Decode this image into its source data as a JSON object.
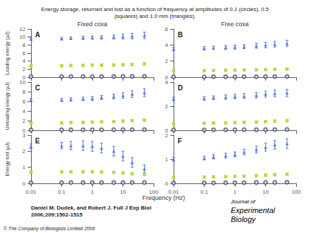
{
  "title": "Energy storage, returned and lost as a function of frequency at amplitudes of 0.1 (circles), 0.5\n(squares) and 1.0 mm (triangles).",
  "xlabel": "Frequency (Hz)",
  "annotations": [
    "Daniel M. Dudek, and Robert J. Full J Exp Biol\n2006;209:1502-1515",
    "© The Company of Biologists Limited 2006",
    "Journal of",
    "Experimental",
    "Biology"
  ],
  "chart_data": [
    {
      "type": "scatter",
      "title": "Fixed coxa",
      "ylabel": "Loading energy (µJ)",
      "annotations": [
        "A"
      ],
      "x": [
        0.01,
        0.1,
        0.2,
        0.5,
        1.0,
        2.0,
        5.0,
        10.0,
        20.0,
        50.0
      ],
      "log": "x",
      "xlim": [
        0.01,
        100
      ],
      "xticks": [
        0.01,
        0.1,
        1,
        10,
        100
      ],
      "ylim": [
        0,
        12
      ],
      "yticks": [
        0,
        2,
        4,
        6,
        8,
        10,
        12
      ],
      "grid": false,
      "tick_labels": "y",
      "series": [
        {
          "marker": "triangle",
          "values": [
            9.5,
            9.6,
            9.7,
            9.8,
            9.85,
            9.9,
            10.0,
            10.1,
            10.2,
            10.4
          ],
          "yerr": [
            0.3,
            0.3,
            0.3,
            0.4,
            0.4,
            0.4,
            0.5,
            0.6,
            0.7,
            0.8
          ]
        },
        {
          "marker": "square",
          "values": [
            2.8,
            2.85,
            2.9,
            2.95,
            3.0,
            3.0,
            3.05,
            3.1,
            3.15,
            3.3
          ],
          "yerr": [
            0.15,
            0.15,
            0.15,
            0.15,
            0.15,
            0.15,
            0.2,
            0.2,
            0.25,
            0.3
          ]
        },
        {
          "marker": "circle",
          "values": [
            0.15,
            0.16,
            0.17,
            0.17,
            0.18,
            0.18,
            0.19,
            0.2,
            0.21,
            0.22
          ],
          "yerr": [
            0.02,
            0.02,
            0.02,
            0.02,
            0.02,
            0.02,
            0.02,
            0.02,
            0.03,
            0.03
          ]
        }
      ]
    },
    {
      "type": "scatter",
      "title": "Free coxa",
      "annotations": [
        "B"
      ],
      "x": [
        0.01,
        0.1,
        0.2,
        0.5,
        1.0,
        2.0,
        5.0,
        10.0,
        20.0,
        50.0
      ],
      "log": "x",
      "xlim": [
        0.01,
        100
      ],
      "xticks": [
        0.01,
        0.1,
        1,
        10,
        100
      ],
      "ylim": [
        0,
        6
      ],
      "yticks": [
        0,
        2,
        4,
        6
      ],
      "grid": false,
      "tick_labels": "y",
      "series": [
        {
          "marker": "triangle",
          "values": [
            3.5,
            3.6,
            3.65,
            3.7,
            3.75,
            3.8,
            3.9,
            4.0,
            4.1,
            4.2
          ],
          "yerr": [
            0.2,
            0.2,
            0.2,
            0.25,
            0.25,
            0.25,
            0.3,
            0.35,
            0.35,
            0.4
          ]
        },
        {
          "marker": "square",
          "values": [
            0.8,
            0.82,
            0.84,
            0.86,
            0.88,
            0.9,
            0.92,
            0.95,
            0.98,
            1.0
          ],
          "yerr": [
            0.05,
            0.05,
            0.05,
            0.06,
            0.06,
            0.06,
            0.07,
            0.08,
            0.08,
            0.09
          ]
        },
        {
          "marker": "circle",
          "values": [
            0.05,
            0.05,
            0.06,
            0.06,
            0.06,
            0.07,
            0.07,
            0.08,
            0.08,
            0.09
          ],
          "yerr": [
            0.01,
            0.01,
            0.01,
            0.01,
            0.01,
            0.01,
            0.01,
            0.01,
            0.01,
            0.01
          ]
        }
      ]
    },
    {
      "type": "scatter",
      "ylabel": "Unloading energy (µJ)",
      "annotations": [
        "C"
      ],
      "x": [
        0.01,
        0.1,
        0.2,
        0.5,
        1.0,
        2.0,
        5.0,
        10.0,
        20.0,
        50.0
      ],
      "log": "x",
      "xlim": [
        0.01,
        100
      ],
      "xticks": [
        0.01,
        0.1,
        1,
        10,
        100
      ],
      "ylim": [
        0,
        10
      ],
      "yticks": [
        0,
        2,
        4,
        6,
        8,
        10
      ],
      "grid": false,
      "tick_labels": "y",
      "series": [
        {
          "marker": "triangle",
          "values": [
            6.2,
            6.3,
            6.4,
            6.5,
            6.6,
            6.8,
            7.0,
            7.2,
            7.5,
            7.8
          ],
          "yerr": [
            0.3,
            0.3,
            0.35,
            0.35,
            0.4,
            0.4,
            0.5,
            0.6,
            0.7,
            0.8
          ]
        },
        {
          "marker": "square",
          "values": [
            1.5,
            1.55,
            1.6,
            1.65,
            1.7,
            1.75,
            1.8,
            1.9,
            2.0,
            2.1
          ],
          "yerr": [
            0.1,
            0.1,
            0.1,
            0.12,
            0.12,
            0.12,
            0.15,
            0.18,
            0.2,
            0.22
          ]
        },
        {
          "marker": "circle",
          "values": [
            0.08,
            0.09,
            0.09,
            0.1,
            0.1,
            0.11,
            0.12,
            0.13,
            0.14,
            0.15
          ],
          "yerr": [
            0.01,
            0.01,
            0.01,
            0.01,
            0.01,
            0.01,
            0.01,
            0.02,
            0.02,
            0.02
          ]
        }
      ]
    },
    {
      "type": "scatter",
      "annotations": [
        "D"
      ],
      "x": [
        0.01,
        0.1,
        0.2,
        0.5,
        1.0,
        2.0,
        5.0,
        10.0,
        20.0,
        50.0
      ],
      "log": "x",
      "xlim": [
        0.01,
        100
      ],
      "xticks": [
        0.01,
        0.1,
        1,
        10,
        100
      ],
      "ylim": [
        0,
        4
      ],
      "yticks": [
        0,
        2,
        4
      ],
      "grid": false,
      "tick_labels": "y",
      "series": [
        {
          "marker": "triangle",
          "values": [
            2.6,
            2.65,
            2.7,
            2.75,
            2.8,
            2.85,
            2.9,
            3.0,
            3.05,
            3.1
          ],
          "yerr": [
            0.15,
            0.15,
            0.15,
            0.18,
            0.18,
            0.2,
            0.22,
            0.25,
            0.28,
            0.3
          ]
        },
        {
          "marker": "square",
          "values": [
            0.55,
            0.58,
            0.6,
            0.62,
            0.64,
            0.66,
            0.68,
            0.72,
            0.76,
            0.8
          ],
          "yerr": [
            0.04,
            0.04,
            0.04,
            0.05,
            0.05,
            0.05,
            0.06,
            0.07,
            0.08,
            0.09
          ]
        },
        {
          "marker": "circle",
          "values": [
            0.03,
            0.03,
            0.04,
            0.04,
            0.04,
            0.05,
            0.05,
            0.06,
            0.06,
            0.07
          ],
          "yerr": [
            0.005,
            0.005,
            0.005,
            0.005,
            0.005,
            0.006,
            0.006,
            0.007,
            0.007,
            0.008
          ]
        }
      ]
    },
    {
      "type": "scatter",
      "ylabel": "Energy lost (µJ)",
      "annotations": [
        "E"
      ],
      "x": [
        0.01,
        0.1,
        0.2,
        0.5,
        1.0,
        2.0,
        5.0,
        10.0,
        20.0,
        50.0
      ],
      "log": "x",
      "xlim": [
        0.01,
        100
      ],
      "xticks": [
        0.01,
        0.1,
        1,
        10,
        100
      ],
      "ylim": [
        0,
        3
      ],
      "yticks": [
        0,
        1,
        2,
        3
      ],
      "grid": false,
      "series": [
        {
          "marker": "triangle",
          "values": [
            2.3,
            2.35,
            2.35,
            2.35,
            2.3,
            2.2,
            2.0,
            1.7,
            1.3,
            0.9
          ],
          "yerr": [
            0.15,
            0.2,
            0.25,
            0.3,
            0.3,
            0.3,
            0.3,
            0.3,
            0.3,
            0.25
          ]
        },
        {
          "marker": "square",
          "values": [
            0.7,
            0.72,
            0.72,
            0.72,
            0.72,
            0.7,
            0.68,
            0.65,
            0.6,
            0.55
          ],
          "yerr": [
            0.05,
            0.05,
            0.05,
            0.06,
            0.06,
            0.06,
            0.06,
            0.06,
            0.06,
            0.06
          ]
        },
        {
          "marker": "circle",
          "values": [
            0.04,
            0.04,
            0.05,
            0.05,
            0.05,
            0.05,
            0.05,
            0.05,
            0.05,
            0.05
          ],
          "yerr": [
            0.005,
            0.005,
            0.006,
            0.006,
            0.006,
            0.006,
            0.006,
            0.006,
            0.006,
            0.006
          ]
        }
      ]
    },
    {
      "type": "scatter",
      "annotations": [
        "F"
      ],
      "x": [
        0.01,
        0.1,
        0.2,
        0.5,
        1.0,
        2.0,
        5.0,
        10.0,
        20.0,
        50.0
      ],
      "log": "x",
      "xlim": [
        0.01,
        100
      ],
      "xticks": [
        0.01,
        0.1,
        1,
        10,
        100
      ],
      "ylim": [
        0,
        2
      ],
      "yticks": [
        0,
        1,
        2
      ],
      "grid": false,
      "series": [
        {
          "marker": "triangle",
          "values": [
            1.0,
            1.05,
            1.1,
            1.15,
            1.2,
            1.3,
            1.4,
            1.5,
            1.6,
            1.65
          ],
          "yerr": [
            0.08,
            0.08,
            0.09,
            0.1,
            0.1,
            0.12,
            0.14,
            0.16,
            0.18,
            0.2
          ]
        },
        {
          "marker": "square",
          "values": [
            0.25,
            0.26,
            0.27,
            0.28,
            0.29,
            0.3,
            0.32,
            0.34,
            0.36,
            0.38
          ],
          "yerr": [
            0.02,
            0.02,
            0.02,
            0.03,
            0.03,
            0.03,
            0.04,
            0.04,
            0.05,
            0.05
          ]
        },
        {
          "marker": "circle",
          "values": [
            0.02,
            0.02,
            0.02,
            0.03,
            0.03,
            0.03,
            0.04,
            0.04,
            0.04,
            0.05
          ],
          "yerr": [
            0.003,
            0.003,
            0.003,
            0.003,
            0.004,
            0.004,
            0.004,
            0.005,
            0.005,
            0.005
          ]
        }
      ]
    }
  ]
}
